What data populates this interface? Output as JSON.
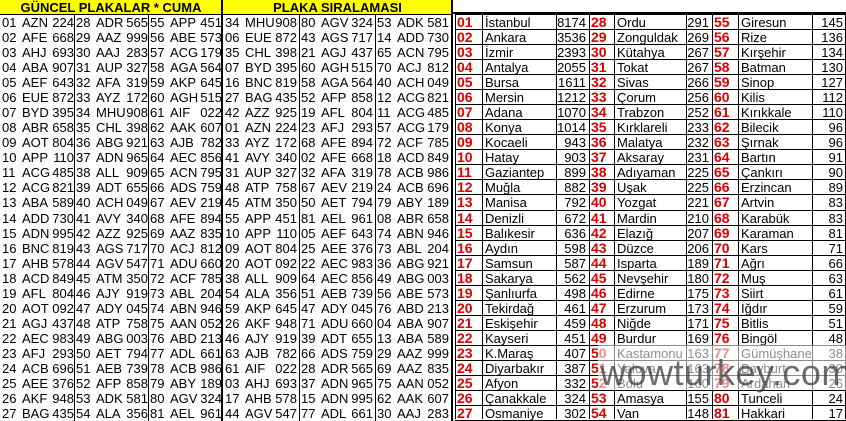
{
  "guncel": {
    "title": "GÜNCEL PLAKALAR * CUMA",
    "columns": [
      [
        [
          "01",
          "AZN",
          "224"
        ],
        [
          "02",
          "AFE",
          "668"
        ],
        [
          "03",
          "AHJ",
          "693"
        ],
        [
          "04",
          "ABA",
          "907"
        ],
        [
          "05",
          "AEF",
          "643"
        ],
        [
          "06",
          "EUE",
          "872"
        ],
        [
          "07",
          "BYD",
          "395"
        ],
        [
          "08",
          "ABR",
          "658"
        ],
        [
          "09",
          "AOT",
          "804"
        ],
        [
          "10",
          "APP",
          "110"
        ],
        [
          "11",
          "ACG",
          "485"
        ],
        [
          "12",
          "ACG",
          "821"
        ],
        [
          "13",
          "ABA",
          "589"
        ],
        [
          "14",
          "ADD",
          "730"
        ],
        [
          "15",
          "ADN",
          "995"
        ],
        [
          "16",
          "BNC",
          "819"
        ],
        [
          "17",
          "AHB",
          "578"
        ],
        [
          "18",
          "ACD",
          "849"
        ],
        [
          "19",
          "AFL",
          "804"
        ],
        [
          "20",
          "AOT",
          "092"
        ],
        [
          "21",
          "AGJ",
          "437"
        ],
        [
          "22",
          "AEC",
          "983"
        ],
        [
          "23",
          "AFJ",
          "293"
        ],
        [
          "24",
          "ACB",
          "696"
        ],
        [
          "25",
          "AEE",
          "376"
        ],
        [
          "26",
          "AKF",
          "948"
        ],
        [
          "27",
          "BAG",
          "435"
        ]
      ],
      [
        [
          "28",
          "ADR",
          "565"
        ],
        [
          "29",
          "AAZ",
          "999"
        ],
        [
          "30",
          "AAJ",
          "283"
        ],
        [
          "31",
          "AUP",
          "327"
        ],
        [
          "32",
          "AFA",
          "319"
        ],
        [
          "33",
          "AYZ",
          "172"
        ],
        [
          "34",
          "MHU",
          "908"
        ],
        [
          "35",
          "CHL",
          "398"
        ],
        [
          "36",
          "ABG",
          "921"
        ],
        [
          "37",
          "ADN",
          "965"
        ],
        [
          "38",
          "ALL",
          "909"
        ],
        [
          "39",
          "ADT",
          "655"
        ],
        [
          "40",
          "ACH",
          "049"
        ],
        [
          "41",
          "AVY",
          "340"
        ],
        [
          "42",
          "AZZ",
          "925"
        ],
        [
          "43",
          "AGS",
          "717"
        ],
        [
          "44",
          "AGV",
          "547"
        ],
        [
          "45",
          "ATM",
          "350"
        ],
        [
          "46",
          "AJY",
          "919"
        ],
        [
          "47",
          "ADY",
          "045"
        ],
        [
          "48",
          "ATP",
          "758"
        ],
        [
          "49",
          "ABG",
          "003"
        ],
        [
          "50",
          "AET",
          "794"
        ],
        [
          "51",
          "AEB",
          "739"
        ],
        [
          "52",
          "AFP",
          "858"
        ],
        [
          "53",
          "ADK",
          "581"
        ],
        [
          "54",
          "ALA",
          "356"
        ]
      ],
      [
        [
          "55",
          "APP",
          "451"
        ],
        [
          "56",
          "ABE",
          "573"
        ],
        [
          "57",
          "ACG",
          "179"
        ],
        [
          "58",
          "AGA",
          "564"
        ],
        [
          "59",
          "AKP",
          "645"
        ],
        [
          "60",
          "AGH",
          "515"
        ],
        [
          "61",
          "AIF",
          "022"
        ],
        [
          "62",
          "AAK",
          "607"
        ],
        [
          "63",
          "AJB",
          "782"
        ],
        [
          "64",
          "AEC",
          "856"
        ],
        [
          "65",
          "ACN",
          "795"
        ],
        [
          "66",
          "ADS",
          "759"
        ],
        [
          "67",
          "AEV",
          "219"
        ],
        [
          "68",
          "AFE",
          "894"
        ],
        [
          "69",
          "AAZ",
          "835"
        ],
        [
          "70",
          "ACJ",
          "812"
        ],
        [
          "71",
          "ADU",
          "660"
        ],
        [
          "72",
          "ACF",
          "785"
        ],
        [
          "73",
          "ABL",
          "204"
        ],
        [
          "74",
          "ABN",
          "946"
        ],
        [
          "75",
          "AAN",
          "052"
        ],
        [
          "76",
          "ABD",
          "213"
        ],
        [
          "77",
          "ADL",
          "661"
        ],
        [
          "78",
          "ACB",
          "986"
        ],
        [
          "79",
          "ABY",
          "189"
        ],
        [
          "80",
          "AGV",
          "324"
        ],
        [
          "81",
          "AEL",
          "961"
        ]
      ]
    ]
  },
  "siralama": {
    "title": "PLAKA SIRALAMASI",
    "columns": [
      [
        [
          "34",
          "MHU",
          "908"
        ],
        [
          "06",
          "EUE",
          "872"
        ],
        [
          "35",
          "CHL",
          "398"
        ],
        [
          "07",
          "BYD",
          "395"
        ],
        [
          "16",
          "BNC",
          "819"
        ],
        [
          "27",
          "BAG",
          "435"
        ],
        [
          "42",
          "AZZ",
          "925"
        ],
        [
          "01",
          "AZN",
          "224"
        ],
        [
          "33",
          "AYZ",
          "172"
        ],
        [
          "41",
          "AVY",
          "340"
        ],
        [
          "31",
          "AUP",
          "327"
        ],
        [
          "48",
          "ATP",
          "758"
        ],
        [
          "45",
          "ATM",
          "350"
        ],
        [
          "55",
          "APP",
          "451"
        ],
        [
          "10",
          "APP",
          "110"
        ],
        [
          "09",
          "AOT",
          "804"
        ],
        [
          "20",
          "AOT",
          "092"
        ],
        [
          "38",
          "ALL",
          "909"
        ],
        [
          "54",
          "ALA",
          "356"
        ],
        [
          "59",
          "AKP",
          "645"
        ],
        [
          "26",
          "AKF",
          "948"
        ],
        [
          "46",
          "AJY",
          "919"
        ],
        [
          "63",
          "AJB",
          "782"
        ],
        [
          "61",
          "AIF",
          "022"
        ],
        [
          "03",
          "AHJ",
          "693"
        ],
        [
          "17",
          "AHB",
          "578"
        ],
        [
          "44",
          "AGV",
          "547"
        ]
      ],
      [
        [
          "80",
          "AGV",
          "324"
        ],
        [
          "43",
          "AGS",
          "717"
        ],
        [
          "21",
          "AGJ",
          "437"
        ],
        [
          "60",
          "AGH",
          "515"
        ],
        [
          "58",
          "AGA",
          "564"
        ],
        [
          "52",
          "AFP",
          "858"
        ],
        [
          "19",
          "AFL",
          "804"
        ],
        [
          "23",
          "AFJ",
          "293"
        ],
        [
          "68",
          "AFE",
          "894"
        ],
        [
          "02",
          "AFE",
          "668"
        ],
        [
          "32",
          "AFA",
          "319"
        ],
        [
          "67",
          "AEV",
          "219"
        ],
        [
          "50",
          "AET",
          "794"
        ],
        [
          "81",
          "AEL",
          "961"
        ],
        [
          "05",
          "AEF",
          "643"
        ],
        [
          "25",
          "AEE",
          "376"
        ],
        [
          "22",
          "AEC",
          "983"
        ],
        [
          "64",
          "AEC",
          "856"
        ],
        [
          "51",
          "AEB",
          "739"
        ],
        [
          "47",
          "ADY",
          "045"
        ],
        [
          "71",
          "ADU",
          "660"
        ],
        [
          "39",
          "ADT",
          "655"
        ],
        [
          "66",
          "ADS",
          "759"
        ],
        [
          "28",
          "ADR",
          "565"
        ],
        [
          "37",
          "ADN",
          "965"
        ],
        [
          "15",
          "ADN",
          "995"
        ],
        [
          "77",
          "ADL",
          "661"
        ]
      ],
      [
        [
          "53",
          "ADK",
          "581"
        ],
        [
          "14",
          "ADD",
          "730"
        ],
        [
          "65",
          "ACN",
          "795"
        ],
        [
          "70",
          "ACJ",
          "812"
        ],
        [
          "40",
          "ACH",
          "049"
        ],
        [
          "12",
          "ACG",
          "821"
        ],
        [
          "11",
          "ACG",
          "485"
        ],
        [
          "57",
          "ACG",
          "179"
        ],
        [
          "72",
          "ACF",
          "785"
        ],
        [
          "18",
          "ACD",
          "849"
        ],
        [
          "78",
          "ACB",
          "986"
        ],
        [
          "24",
          "ACB",
          "696"
        ],
        [
          "79",
          "ABY",
          "189"
        ],
        [
          "08",
          "ABR",
          "658"
        ],
        [
          "74",
          "ABN",
          "946"
        ],
        [
          "73",
          "ABL",
          "204"
        ],
        [
          "36",
          "ABG",
          "921"
        ],
        [
          "49",
          "ABG",
          "003"
        ],
        [
          "56",
          "ABE",
          "573"
        ],
        [
          "76",
          "ABD",
          "213"
        ],
        [
          "04",
          "ABA",
          "907"
        ],
        [
          "13",
          "ABA",
          "589"
        ],
        [
          "29",
          "AAZ",
          "999"
        ],
        [
          "69",
          "AAZ",
          "835"
        ],
        [
          "75",
          "AAN",
          "052"
        ],
        [
          "62",
          "AAK",
          "607"
        ],
        [
          "30",
          "AAJ",
          "283"
        ]
      ]
    ]
  },
  "ranking": {
    "rank_color": "#dd0000",
    "rows": [
      [
        "01",
        "İstanbul",
        "8174"
      ],
      [
        "02",
        "Ankara",
        "3536"
      ],
      [
        "03",
        "İzmir",
        "2393"
      ],
      [
        "04",
        "Antalya",
        "2055"
      ],
      [
        "05",
        "Bursa",
        "1611"
      ],
      [
        "06",
        "Mersin",
        "1212"
      ],
      [
        "07",
        "Adana",
        "1070"
      ],
      [
        "08",
        "Konya",
        "1014"
      ],
      [
        "09",
        "Kocaeli",
        "943"
      ],
      [
        "10",
        "Hatay",
        "903"
      ],
      [
        "11",
        "Gaziantep",
        "899"
      ],
      [
        "12",
        "Muğla",
        "882"
      ],
      [
        "13",
        "Manisa",
        "792"
      ],
      [
        "14",
        "Denizli",
        "672"
      ],
      [
        "15",
        "Balıkesir",
        "636"
      ],
      [
        "16",
        "Aydın",
        "598"
      ],
      [
        "17",
        "Samsun",
        "587"
      ],
      [
        "18",
        "Sakarya",
        "562"
      ],
      [
        "19",
        "Şanlıurfa",
        "498"
      ],
      [
        "20",
        "Tekirdağ",
        "461"
      ],
      [
        "21",
        "Eskişehir",
        "459"
      ],
      [
        "22",
        "Kayseri",
        "451"
      ],
      [
        "23",
        "K.Maraş",
        "407"
      ],
      [
        "24",
        "Diyarbakır",
        "387"
      ],
      [
        "25",
        "Afyon",
        "332"
      ],
      [
        "26",
        "Çanakkale",
        "324"
      ],
      [
        "27",
        "Osmaniye",
        "302"
      ],
      [
        "28",
        "Ordu",
        "291"
      ],
      [
        "29",
        "Zonguldak",
        "269"
      ],
      [
        "30",
        "Kütahya",
        "267"
      ],
      [
        "31",
        "Tokat",
        "267"
      ],
      [
        "32",
        "Sivas",
        "266"
      ],
      [
        "33",
        "Çorum",
        "256"
      ],
      [
        "34",
        "Trabzon",
        "252"
      ],
      [
        "35",
        "Kırklareli",
        "233"
      ],
      [
        "36",
        "Malatya",
        "232"
      ],
      [
        "37",
        "Aksaray",
        "231"
      ],
      [
        "38",
        "Adıyaman",
        "225"
      ],
      [
        "39",
        "Uşak",
        "225"
      ],
      [
        "40",
        "Yozgat",
        "221"
      ],
      [
        "41",
        "Mardin",
        "210"
      ],
      [
        "42",
        "Elazığ",
        "207"
      ],
      [
        "43",
        "Düzce",
        "206"
      ],
      [
        "44",
        "Isparta",
        "189"
      ],
      [
        "45",
        "Nevşehir",
        "180"
      ],
      [
        "46",
        "Edirne",
        "175"
      ],
      [
        "47",
        "Erzurum",
        "173"
      ],
      [
        "48",
        "Niğde",
        "171"
      ],
      [
        "49",
        "Burdur",
        "169"
      ],
      [
        "50",
        "Kastamonu",
        "163"
      ],
      [
        "51",
        "Yalova",
        "163"
      ],
      [
        "52",
        "Bolu",
        "160"
      ],
      [
        "53",
        "Amasya",
        "155"
      ],
      [
        "54",
        "Van",
        "148"
      ],
      [
        "55",
        "Giresun",
        "145"
      ],
      [
        "56",
        "Rize",
        "136"
      ],
      [
        "57",
        "Kırşehir",
        "134"
      ],
      [
        "58",
        "Batman",
        "130"
      ],
      [
        "59",
        "Sinop",
        "127"
      ],
      [
        "60",
        "Kilis",
        "112"
      ],
      [
        "61",
        "Kırıkkale",
        "110"
      ],
      [
        "62",
        "Bilecik",
        "96"
      ],
      [
        "63",
        "Şırnak",
        "96"
      ],
      [
        "64",
        "Bartın",
        "91"
      ],
      [
        "65",
        "Çankırı",
        "90"
      ],
      [
        "66",
        "Erzincan",
        "89"
      ],
      [
        "67",
        "Artvin",
        "83"
      ],
      [
        "68",
        "Karabük",
        "83"
      ],
      [
        "69",
        "Karaman",
        "81"
      ],
      [
        "70",
        "Kars",
        "71"
      ],
      [
        "71",
        "Ağrı",
        "66"
      ],
      [
        "72",
        "Muş",
        "63"
      ],
      [
        "73",
        "Siirt",
        "61"
      ],
      [
        "74",
        "Iğdır",
        "59"
      ],
      [
        "75",
        "Bitlis",
        "51"
      ],
      [
        "76",
        "Bingöl",
        "48"
      ],
      [
        "77",
        "Gümüşhane",
        "38"
      ],
      [
        "78",
        "Bayburt",
        "30"
      ],
      [
        "79",
        "Ardahan",
        "26"
      ],
      [
        "80",
        "Tunceli",
        "24"
      ],
      [
        "81",
        "Hakkari",
        "17"
      ]
    ]
  },
  "watermark": "wowturkey.com"
}
